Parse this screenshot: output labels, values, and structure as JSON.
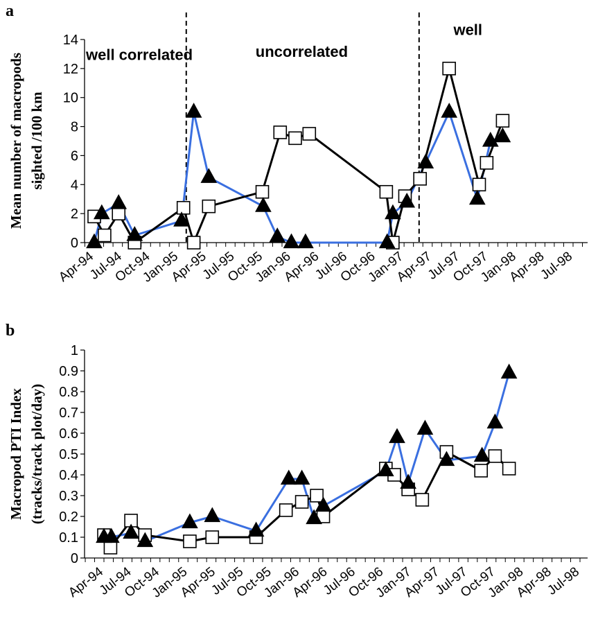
{
  "chart_data": [
    {
      "type": "line",
      "panel_label": "a",
      "ylabel_lines": [
        "Mean number of macropods",
        "sighted /100 km"
      ],
      "xlabel": "",
      "ylim": [
        0,
        14
      ],
      "yticks": [
        0,
        2,
        4,
        6,
        8,
        10,
        12,
        14
      ],
      "xticks": [
        "Apr-94",
        "Jul-94",
        "Oct-94",
        "Jan-95",
        "Apr-95",
        "Jul-95",
        "Oct-95",
        "Jan-96",
        "Apr-96",
        "Jul-96",
        "Oct-96",
        "Jan-97",
        "Apr-97",
        "Jul-97",
        "Oct-97",
        "Jan-98",
        "Apr-98",
        "Jul-98"
      ],
      "x_unit": "months since Apr-94",
      "dividers": [
        9.8,
        34.6
      ],
      "annotations": [
        {
          "text": "well correlated",
          "x": 4.8,
          "y": 12.6
        },
        {
          "text": "uncorrelated",
          "x": 22.1,
          "y": 12.8
        },
        {
          "text": "well",
          "x": 39.8,
          "y": 14.3
        }
      ],
      "series": [
        {
          "marker": "triangle",
          "color": "#3a6fe0",
          "points": [
            [
              0,
              0
            ],
            [
              0.8,
              2
            ],
            [
              2.6,
              2.7
            ],
            [
              4.3,
              0.5
            ],
            [
              9.3,
              1.5
            ],
            [
              10.6,
              9
            ],
            [
              12.2,
              4.5
            ],
            [
              18,
              2.5
            ],
            [
              19.5,
              0.4
            ],
            [
              21,
              0
            ],
            [
              22.5,
              0
            ],
            [
              31.2,
              0
            ],
            [
              31.8,
              2
            ],
            [
              33.3,
              2.8
            ],
            [
              35.3,
              5.5
            ],
            [
              37.8,
              9
            ],
            [
              40.8,
              3
            ],
            [
              42.2,
              7
            ],
            [
              43.5,
              7.3
            ]
          ]
        },
        {
          "marker": "square",
          "color": "#000000",
          "points": [
            [
              0,
              1.8
            ],
            [
              1.1,
              0.5
            ],
            [
              2.6,
              2
            ],
            [
              4.3,
              0
            ],
            [
              9.5,
              2.4
            ],
            [
              10.6,
              0
            ],
            [
              12.2,
              2.5
            ],
            [
              17.9,
              3.5
            ],
            [
              19.8,
              7.6
            ],
            [
              21.4,
              7.2
            ],
            [
              22.9,
              7.5
            ],
            [
              31.1,
              3.5
            ],
            [
              31.8,
              0
            ],
            [
              33.1,
              3.2
            ],
            [
              34.7,
              4.4
            ],
            [
              37.8,
              12
            ],
            [
              41,
              4
            ],
            [
              41.8,
              5.5
            ],
            [
              43.5,
              8.4
            ]
          ]
        }
      ]
    },
    {
      "type": "line",
      "panel_label": "b",
      "ylabel_lines": [
        "Macropod PTI Index",
        "(tracks/track plot/day)"
      ],
      "xlabel": "",
      "ylim": [
        0,
        1
      ],
      "yticks": [
        "0",
        "0.1",
        "0.2",
        "0.3",
        "0.4",
        "0.5",
        "0.6",
        "0.7",
        "0.8",
        "0.9",
        "1"
      ],
      "xticks": [
        "Apr-94",
        "Jul-94",
        "Oct-94",
        "Jan-95",
        "Apr-95",
        "Jul-95",
        "Oct-95",
        "Jan-96",
        "Apr-96",
        "Jul-96",
        "Oct-96",
        "Jan-97",
        "Apr-97",
        "Jul-97",
        "Oct-97",
        "Jan-98",
        "Apr-98",
        "Jul-98"
      ],
      "x_unit": "months since Apr-94",
      "series": [
        {
          "marker": "triangle",
          "color": "#3a6fe0",
          "points": [
            [
              0,
              0.1
            ],
            [
              0.8,
              0.1
            ],
            [
              2.9,
              0.12
            ],
            [
              4.4,
              0.08
            ],
            [
              9.2,
              0.17
            ],
            [
              11.6,
              0.2
            ],
            [
              16.3,
              0.13
            ],
            [
              19.8,
              0.38
            ],
            [
              21.2,
              0.38
            ],
            [
              22.5,
              0.19
            ],
            [
              23.5,
              0.25
            ],
            [
              30.2,
              0.42
            ],
            [
              31.4,
              0.58
            ],
            [
              32.6,
              0.36
            ],
            [
              34.4,
              0.62
            ],
            [
              36.7,
              0.47
            ],
            [
              40.5,
              0.49
            ],
            [
              41.9,
              0.65
            ],
            [
              43.4,
              0.89
            ]
          ]
        },
        {
          "marker": "square",
          "color": "#000000",
          "points": [
            [
              0,
              0.11
            ],
            [
              0.7,
              0.05
            ],
            [
              2.9,
              0.18
            ],
            [
              4.4,
              0.11
            ],
            [
              9.2,
              0.08
            ],
            [
              11.6,
              0.1
            ],
            [
              16.3,
              0.1
            ],
            [
              19.5,
              0.23
            ],
            [
              21.2,
              0.27
            ],
            [
              22.8,
              0.3
            ],
            [
              23.5,
              0.2
            ],
            [
              30.2,
              0.43
            ],
            [
              31.1,
              0.4
            ],
            [
              32.6,
              0.33
            ],
            [
              34.1,
              0.28
            ],
            [
              36.7,
              0.51
            ],
            [
              40.4,
              0.42
            ],
            [
              41.9,
              0.49
            ],
            [
              43.4,
              0.43
            ]
          ]
        }
      ]
    }
  ]
}
